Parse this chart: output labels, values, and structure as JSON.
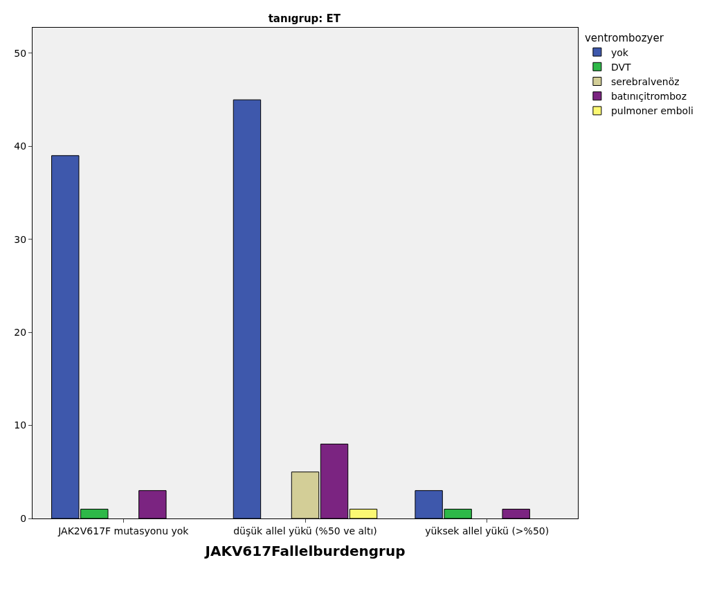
{
  "chart_data": {
    "type": "bar",
    "title": "tanıgrup: ET",
    "xlabel": "JAKV617Fallelburdengrup",
    "legend_title": "ventrombozyer",
    "categories": [
      "JAK2V617F mutasyonu yok",
      "düşük allel yükü (%50 ve altı)",
      "yüksek allel yükü (>%50)"
    ],
    "series": [
      {
        "name": "yok",
        "color": "#3e58ac",
        "values": [
          39,
          45,
          3
        ]
      },
      {
        "name": "DVT",
        "color": "#2eb848",
        "values": [
          1,
          null,
          1
        ]
      },
      {
        "name": "serebralvenöz",
        "color": "#d3ce97",
        "values": [
          null,
          5,
          null
        ]
      },
      {
        "name": "batınıçitromboz",
        "color": "#7b2481",
        "values": [
          3,
          8,
          1
        ]
      },
      {
        "name": "pulmoner emboli",
        "color": "#fbf873",
        "values": [
          null,
          1,
          null
        ]
      }
    ],
    "ylim": [
      0,
      52.75
    ],
    "yticks": [
      0,
      10,
      20,
      30,
      40,
      50
    ],
    "grid": false,
    "legend": "top right"
  }
}
